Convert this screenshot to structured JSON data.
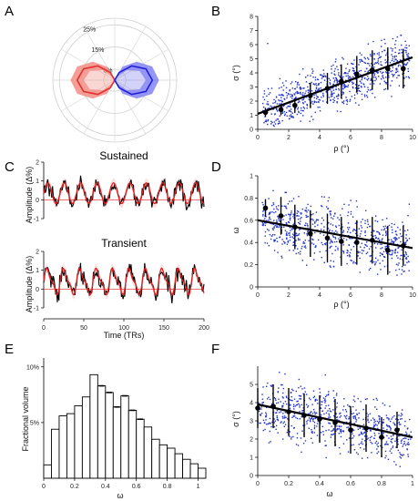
{
  "figure": {
    "panels": [
      "A",
      "B",
      "C",
      "D",
      "E",
      "F"
    ]
  },
  "chart_data": [
    {
      "panel": "A",
      "type": "polar",
      "rings": [
        {
          "label": "5%",
          "value": 5
        },
        {
          "label": "15%",
          "value": 15
        },
        {
          "label": "25%",
          "value": 25
        }
      ],
      "rmax": 28,
      "series": [
        {
          "color": "#e03030",
          "fill": "#f28b82",
          "angles_deg": [
            120,
            140,
            160,
            180,
            200,
            220,
            240
          ],
          "values": [
            4,
            10,
            15,
            17,
            15,
            10,
            4
          ],
          "band": 3
        },
        {
          "color": "#2020d8",
          "fill": "#8080f0",
          "angles_deg": [
            -60,
            -40,
            -20,
            0,
            20,
            40,
            60
          ],
          "values": [
            4,
            10,
            15,
            17,
            15,
            10,
            4
          ],
          "band": 3
        }
      ]
    },
    {
      "panel": "B",
      "type": "scatter",
      "xlabel": "ρ (°)",
      "ylabel": "σ (°)",
      "xlim": [
        0,
        10
      ],
      "ylim": [
        0,
        8
      ],
      "xticks": [
        0,
        2,
        4,
        6,
        8,
        10
      ],
      "yticks": [
        0,
        1,
        2,
        3,
        4,
        5,
        6,
        7,
        8
      ],
      "points_color": "#2233cc",
      "cloud": {
        "n": 800,
        "xrange": [
          0.3,
          9.8
        ],
        "fit": [
          1.1,
          0.4
        ],
        "spread": 1.3,
        "ymin": 0.1,
        "ymax": 7.9
      },
      "fit_line": {
        "x": [
          0,
          10
        ],
        "y": [
          1.1,
          5.1
        ]
      },
      "binned": {
        "x": [
          0.5,
          1.5,
          2.4,
          3.4,
          4.5,
          5.4,
          6.4,
          7.4,
          8.4,
          9.4
        ],
        "y": [
          1.2,
          1.4,
          1.7,
          2.4,
          2.9,
          3.4,
          3.9,
          4.2,
          4.3,
          4.3
        ],
        "err": [
          0.3,
          0.4,
          0.5,
          0.9,
          1.1,
          1.2,
          1.3,
          1.4,
          1.5,
          1.4
        ]
      }
    },
    {
      "panel": "C",
      "type": "line",
      "subplots": [
        {
          "title": "Sustained",
          "ylabel": "Amplitude (Δ%)",
          "ylim": [
            -1,
            2
          ],
          "yticks": [
            -1,
            0,
            1,
            2
          ],
          "model_color": "#e02020",
          "data_color": "#000000",
          "period": 20.5,
          "amp": 0.55,
          "offset": 0.35,
          "noise": 0.35
        },
        {
          "title": "Transient",
          "ylabel": "Amplitude (Δ%)",
          "ylim": [
            -1,
            2
          ],
          "yticks": [
            -1,
            0,
            1,
            2
          ],
          "model_color": "#e02020",
          "data_color": "#000000",
          "period": 20.5,
          "amp": 0.6,
          "offset": 0.4,
          "noise": 0.4
        }
      ],
      "xlim": [
        0,
        200
      ],
      "xticks": [
        0,
        50,
        100,
        150,
        200
      ],
      "xlabel": "Time (TRs)"
    },
    {
      "panel": "D",
      "type": "scatter",
      "xlabel": "ρ (°)",
      "ylabel": "ω",
      "xlim": [
        0,
        10
      ],
      "ylim": [
        0,
        1
      ],
      "xticks": [
        0,
        2,
        4,
        6,
        8,
        10
      ],
      "yticks": [
        0,
        0.2,
        0.4,
        0.6,
        0.8,
        1
      ],
      "yticklabels": [
        "0",
        "0.2",
        "0.4",
        "0.6",
        "0.8",
        "1"
      ],
      "points_color": "#2233cc",
      "cloud": {
        "n": 700,
        "xrange": [
          0.3,
          9.8
        ],
        "fit": [
          0.6,
          -0.025
        ],
        "spread": 0.22,
        "ymin": 0.02,
        "ymax": 0.98
      },
      "fit_line": {
        "x": [
          0,
          10
        ],
        "y": [
          0.6,
          0.35
        ]
      },
      "binned": {
        "x": [
          0.5,
          1.5,
          2.4,
          3.4,
          4.5,
          5.4,
          6.4,
          7.4,
          8.4,
          9.4
        ],
        "y": [
          0.71,
          0.64,
          0.54,
          0.48,
          0.44,
          0.41,
          0.4,
          0.42,
          0.33,
          0.37
        ],
        "err": [
          0.08,
          0.17,
          0.2,
          0.21,
          0.22,
          0.22,
          0.2,
          0.21,
          0.22,
          0.18
        ]
      }
    },
    {
      "panel": "E",
      "type": "bar",
      "xlabel": "ω",
      "ylabel": "Fractional volume",
      "xlim": [
        0,
        1.05
      ],
      "ylim": [
        0,
        10.8
      ],
      "xticks": [
        0,
        0.2,
        0.4,
        0.6,
        0.8,
        1
      ],
      "xticklabels": [
        "0",
        "0.2",
        "0.4",
        "0.6",
        "0.8",
        "1"
      ],
      "yticks": [
        5,
        10
      ],
      "yticklabels": [
        "5%",
        "10%"
      ],
      "bin_width": 0.05,
      "bins_left": [
        0,
        0.05,
        0.1,
        0.15,
        0.2,
        0.25,
        0.3,
        0.35,
        0.4,
        0.45,
        0.5,
        0.55,
        0.6,
        0.65,
        0.7,
        0.75,
        0.8,
        0.85,
        0.9,
        0.95,
        1.0
      ],
      "values": [
        1.2,
        4.4,
        5.6,
        5.8,
        6.5,
        7.3,
        9.3,
        8.3,
        7.7,
        6.4,
        7.4,
        6.1,
        5.3,
        4.6,
        3.5,
        3.0,
        2.7,
        2.2,
        1.7,
        1.3,
        0.9
      ],
      "err": [
        0,
        0,
        0,
        0,
        0,
        0,
        0,
        0.15,
        0.15,
        0.15,
        0.15,
        0.1,
        0.1,
        0,
        0,
        0,
        0,
        0,
        0,
        0,
        0
      ]
    },
    {
      "panel": "F",
      "type": "scatter",
      "xlabel": "ω",
      "ylabel": "σ (°)",
      "xlim": [
        0,
        1
      ],
      "ylim": [
        0,
        6
      ],
      "xticks": [
        0,
        0.2,
        0.4,
        0.6,
        0.8,
        1
      ],
      "xticklabels": [
        "0",
        "0.2",
        "0.4",
        "0.6",
        "0.8",
        "1"
      ],
      "yticks": [
        0,
        1,
        2,
        3,
        4,
        5
      ],
      "points_color": "#2233cc",
      "cloud": {
        "n": 700,
        "xrange": [
          0.0,
          1.0
        ],
        "fit": [
          3.9,
          -1.8
        ],
        "spread": 1.35,
        "ymin": 0.1,
        "ymax": 5.9
      },
      "fit_line": {
        "x": [
          0,
          1
        ],
        "y": [
          3.9,
          2.1
        ]
      },
      "binned": {
        "x": [
          0.0,
          0.1,
          0.2,
          0.3,
          0.4,
          0.5,
          0.6,
          0.7,
          0.8,
          0.9
        ],
        "y": [
          3.7,
          3.8,
          3.5,
          3.3,
          3.1,
          2.9,
          2.5,
          2.6,
          2.1,
          2.5
        ],
        "err": [
          1.1,
          1.2,
          1.3,
          1.2,
          1.3,
          1.3,
          1.3,
          1.3,
          1.1,
          1.0
        ]
      }
    }
  ]
}
